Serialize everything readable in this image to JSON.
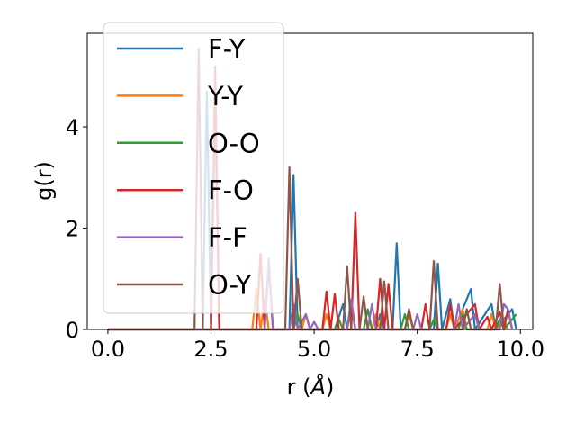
{
  "chart_data": {
    "type": "line",
    "title": "",
    "xlabel_main": "r (",
    "xlabel_unit": "Å",
    "xlabel_close": ")",
    "ylabel": "g(r)",
    "xlim": [
      -0.5,
      10.3
    ],
    "ylim": [
      0,
      5.85
    ],
    "xticks": [
      0.0,
      2.5,
      5.0,
      7.5,
      10.0
    ],
    "xtick_labels": [
      "0.0",
      "2.5",
      "5.0",
      "7.5",
      "10.0"
    ],
    "yticks": [
      0,
      2,
      4
    ],
    "ytick_labels": [
      "0",
      "2",
      "4"
    ],
    "grid": false,
    "legend_position": "upper-left",
    "series": [
      {
        "name": "F-Y",
        "color": "#1f77b4",
        "points": [
          [
            0,
            0
          ],
          [
            2.3,
            0
          ],
          [
            2.4,
            4.7
          ],
          [
            2.5,
            0
          ],
          [
            2.6,
            4.5
          ],
          [
            2.7,
            0
          ],
          [
            4.4,
            0
          ],
          [
            4.5,
            3.05
          ],
          [
            4.6,
            0
          ],
          [
            5.5,
            0
          ],
          [
            5.7,
            0.5
          ],
          [
            5.8,
            0
          ],
          [
            6.5,
            0
          ],
          [
            6.6,
            0.3
          ],
          [
            6.7,
            0
          ],
          [
            6.9,
            0
          ],
          [
            7.0,
            1.7
          ],
          [
            7.1,
            0
          ],
          [
            7.9,
            0
          ],
          [
            8.0,
            1.3
          ],
          [
            8.1,
            0
          ],
          [
            8.3,
            0.6
          ],
          [
            8.4,
            0
          ],
          [
            8.8,
            0.8
          ],
          [
            8.9,
            0
          ],
          [
            9.3,
            0.5
          ],
          [
            9.4,
            0
          ],
          [
            9.8,
            0.4
          ],
          [
            9.9,
            0
          ]
        ]
      },
      {
        "name": "Y-Y",
        "color": "#ff7f0e",
        "points": [
          [
            0,
            0
          ],
          [
            3.5,
            0
          ],
          [
            3.6,
            0.8
          ],
          [
            3.7,
            0
          ],
          [
            3.8,
            0.6
          ],
          [
            3.9,
            0
          ],
          [
            4.7,
            0
          ],
          [
            4.8,
            0.3
          ],
          [
            4.9,
            0
          ],
          [
            5.2,
            0
          ],
          [
            5.3,
            0.3
          ],
          [
            5.4,
            0
          ],
          [
            5.8,
            0
          ],
          [
            5.9,
            0.4
          ],
          [
            6.0,
            0
          ],
          [
            6.4,
            0
          ],
          [
            6.5,
            0.3
          ],
          [
            6.6,
            0
          ],
          [
            7.2,
            0
          ],
          [
            7.3,
            0.3
          ],
          [
            7.4,
            0
          ],
          [
            8.2,
            0
          ],
          [
            8.3,
            0.3
          ],
          [
            8.4,
            0
          ],
          [
            8.6,
            0.4
          ],
          [
            8.7,
            0
          ],
          [
            9.2,
            0
          ],
          [
            9.3,
            0.3
          ],
          [
            9.4,
            0
          ],
          [
            9.6,
            0.2
          ],
          [
            9.7,
            0
          ]
        ]
      },
      {
        "name": "O-O",
        "color": "#2ca02c",
        "points": [
          [
            0,
            0
          ],
          [
            4.5,
            0
          ],
          [
            4.6,
            0.3
          ],
          [
            4.7,
            0
          ],
          [
            5.5,
            0
          ],
          [
            5.6,
            0.2
          ],
          [
            5.7,
            0
          ],
          [
            6.2,
            0
          ],
          [
            6.3,
            0.4
          ],
          [
            6.4,
            0
          ],
          [
            7.1,
            0
          ],
          [
            7.2,
            0.3
          ],
          [
            7.3,
            0
          ],
          [
            7.8,
            0
          ],
          [
            7.9,
            0.2
          ],
          [
            8.0,
            0
          ],
          [
            8.5,
            0
          ],
          [
            8.6,
            0.3
          ],
          [
            8.7,
            0
          ],
          [
            9.4,
            0
          ],
          [
            9.5,
            0.2
          ],
          [
            9.6,
            0
          ],
          [
            9.9,
            0.3
          ]
        ]
      },
      {
        "name": "F-O",
        "color": "#d62728",
        "points": [
          [
            0,
            0
          ],
          [
            2.5,
            0
          ],
          [
            2.6,
            5.2
          ],
          [
            2.7,
            0
          ],
          [
            3.6,
            0
          ],
          [
            3.7,
            1.5
          ],
          [
            3.8,
            0
          ],
          [
            3.9,
            1.3
          ],
          [
            4.0,
            0
          ],
          [
            5.2,
            0
          ],
          [
            5.3,
            0.75
          ],
          [
            5.4,
            0
          ],
          [
            5.5,
            0.7
          ],
          [
            5.6,
            0
          ],
          [
            5.9,
            0
          ],
          [
            6.0,
            2.3
          ],
          [
            6.1,
            0
          ],
          [
            6.5,
            0
          ],
          [
            6.6,
            1.0
          ],
          [
            6.7,
            0
          ],
          [
            6.8,
            0.9
          ],
          [
            6.9,
            0
          ],
          [
            7.6,
            0
          ],
          [
            7.7,
            0.5
          ],
          [
            7.8,
            0
          ],
          [
            8.2,
            0
          ],
          [
            8.3,
            0.5
          ],
          [
            8.4,
            0
          ],
          [
            8.9,
            0.5
          ],
          [
            9.0,
            0
          ],
          [
            9.2,
            0.25
          ],
          [
            9.3,
            0
          ],
          [
            9.5,
            0.35
          ],
          [
            9.6,
            0
          ],
          [
            9.7,
            0.4
          ],
          [
            9.8,
            0
          ]
        ]
      },
      {
        "name": "F-F",
        "color": "#9467bd",
        "points": [
          [
            0,
            0
          ],
          [
            3.8,
            0
          ],
          [
            3.9,
            1.4
          ],
          [
            4.0,
            0
          ],
          [
            4.4,
            0
          ],
          [
            4.5,
            0.5
          ],
          [
            4.6,
            0
          ],
          [
            4.8,
            0.3
          ],
          [
            4.9,
            0
          ],
          [
            5.0,
            0.15
          ],
          [
            5.1,
            0
          ],
          [
            5.8,
            0
          ],
          [
            5.9,
            0.6
          ],
          [
            6.0,
            0
          ],
          [
            6.3,
            0
          ],
          [
            6.4,
            0.5
          ],
          [
            6.5,
            0
          ],
          [
            7.4,
            0
          ],
          [
            7.5,
            0.3
          ],
          [
            7.6,
            0
          ],
          [
            8.4,
            0
          ],
          [
            8.5,
            0.5
          ],
          [
            8.6,
            0
          ],
          [
            8.9,
            0.3
          ],
          [
            9.0,
            0
          ],
          [
            9.5,
            0
          ],
          [
            9.6,
            0.5
          ],
          [
            9.7,
            0.4
          ],
          [
            9.8,
            0
          ]
        ]
      },
      {
        "name": "O-Y",
        "color": "#8c564b",
        "points": [
          [
            0,
            0
          ],
          [
            2.1,
            0
          ],
          [
            2.2,
            5.55
          ],
          [
            2.3,
            0
          ],
          [
            4.3,
            0
          ],
          [
            4.4,
            3.2
          ],
          [
            4.5,
            0
          ],
          [
            4.6,
            1.0
          ],
          [
            4.7,
            0
          ],
          [
            5.7,
            0
          ],
          [
            5.8,
            1.25
          ],
          [
            5.9,
            0
          ],
          [
            6.1,
            0
          ],
          [
            6.2,
            0.65
          ],
          [
            6.3,
            0
          ],
          [
            6.6,
            0
          ],
          [
            6.7,
            0.95
          ],
          [
            6.8,
            0
          ],
          [
            7.2,
            0
          ],
          [
            7.3,
            0.4
          ],
          [
            7.4,
            0
          ],
          [
            7.8,
            0
          ],
          [
            7.9,
            1.35
          ],
          [
            8.0,
            0
          ],
          [
            8.6,
            0
          ],
          [
            8.7,
            0.4
          ],
          [
            8.8,
            0
          ],
          [
            9.4,
            0
          ],
          [
            9.5,
            0.9
          ],
          [
            9.6,
            0
          ]
        ]
      }
    ]
  }
}
